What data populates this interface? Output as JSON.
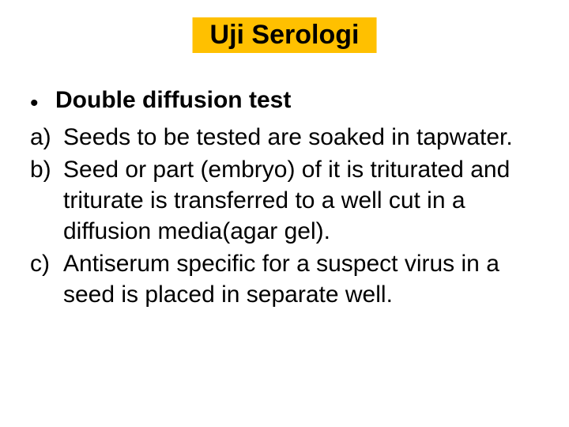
{
  "title": "Uji Serologi",
  "bullet": {
    "marker": "•",
    "text": "Double diffusion test"
  },
  "items": [
    {
      "marker": "a)",
      "text": "Seeds to be tested are soaked in tapwater."
    },
    {
      "marker": "b)",
      "text": "Seed or part (embryo) of it is triturated and  triturate is transferred to a well cut in a  diffusion media(agar gel)."
    },
    {
      "marker": "c)",
      "text": "Antiserum specific for a suspect virus in a  seed is placed in separate well."
    }
  ],
  "colors": {
    "title_bg": "#ffc000",
    "text": "#000000",
    "background": "#ffffff"
  },
  "typography": {
    "title_fontsize": 34,
    "body_fontsize": 30,
    "title_weight": 700,
    "bullet_weight": 700
  }
}
